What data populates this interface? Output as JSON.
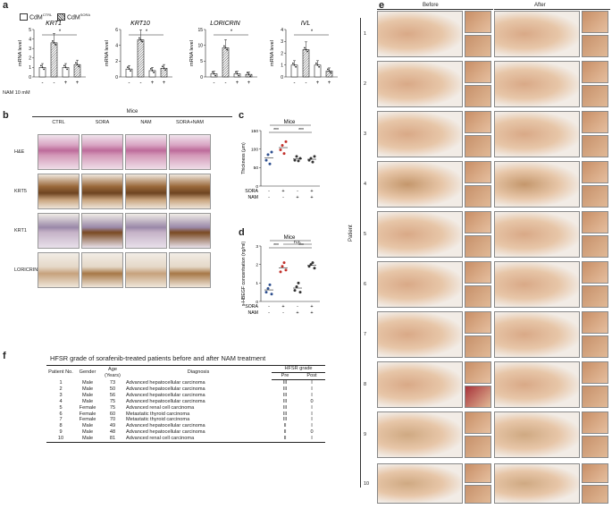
{
  "panel_letters": {
    "a": "a",
    "b": "b",
    "c": "c",
    "d": "d",
    "e": "e",
    "f": "f"
  },
  "panel_a": {
    "legend": {
      "ctrl": "CdM",
      "ctrl_sup": "CTRL",
      "sora": "CdM",
      "sora_sup": "SORA"
    },
    "nam_label": "NAM 10 mM",
    "signs": [
      "-",
      "-",
      "+",
      "+"
    ],
    "ylabel": "mRNA level",
    "sig": "*"
  },
  "chart_data": [
    {
      "type": "bar",
      "title": "KRT1",
      "ylabel": "mRNA level",
      "categories": [
        "CdM CTRL",
        "CdM SORA",
        "CdM CTRL + NAM",
        "CdM SORA + NAM"
      ],
      "values": [
        1.0,
        3.6,
        1.0,
        1.3
      ],
      "ylim": [
        0,
        5
      ],
      "yticks": [
        "0",
        "1",
        "2",
        "3",
        "4",
        "5"
      ]
    },
    {
      "type": "bar",
      "title": "KRT10",
      "ylabel": "mRNA level",
      "categories": [
        "CdM CTRL",
        "CdM SORA",
        "CdM CTRL + NAM",
        "CdM SORA + NAM"
      ],
      "values": [
        1.0,
        4.7,
        0.8,
        1.1
      ],
      "ylim": [
        0,
        6
      ],
      "yticks": [
        "0",
        "2",
        "4",
        "6"
      ]
    },
    {
      "type": "bar",
      "title": "LORICRIN",
      "ylabel": "mRNA level",
      "categories": [
        "CdM CTRL",
        "CdM SORA",
        "CdM CTRL + NAM",
        "CdM SORA + NAM"
      ],
      "values": [
        1.0,
        9.2,
        1.0,
        0.8
      ],
      "ylim": [
        0,
        15
      ],
      "yticks": [
        "0",
        "5",
        "10",
        "15"
      ]
    },
    {
      "type": "bar",
      "title": "IVL",
      "ylabel": "mRNA level",
      "categories": [
        "CdM CTRL",
        "CdM SORA",
        "CdM CTRL + NAM",
        "CdM SORA + NAM"
      ],
      "values": [
        1.0,
        2.3,
        1.0,
        0.5
      ],
      "ylim": [
        0,
        4
      ],
      "yticks": [
        "0",
        "1",
        "2",
        "3",
        "4"
      ]
    },
    {
      "type": "scatter",
      "title": "Mice",
      "ylabel": "Thickness (μm)",
      "categories": [
        "CTRL",
        "SORA",
        "NAM",
        "SORA+NAM"
      ],
      "ylim": [
        0,
        150
      ],
      "yticks": [
        "0",
        "50",
        "100",
        "150"
      ],
      "series": [
        {
          "values": [
            [
              70,
              85,
              60,
              92
            ],
            [
              98,
              110,
              88,
              120
            ],
            [
              70,
              80,
              68,
              75
            ],
            [
              70,
              75,
              65,
              80
            ]
          ]
        }
      ]
    },
    {
      "type": "scatter",
      "title": "Mice",
      "ylabel": "s-HBEGF concentration (ng/ml)",
      "categories": [
        "CTRL",
        "SORA",
        "NAM",
        "SORA+NAM"
      ],
      "ylim": [
        0,
        3
      ],
      "yticks": [
        "0",
        "1",
        "2",
        "3"
      ],
      "series": [
        {
          "values": [
            [
              0.5,
              0.7,
              0.9,
              0.4
            ],
            [
              1.6,
              1.9,
              2.1,
              1.7
            ],
            [
              0.6,
              0.8,
              1.0,
              0.5
            ],
            [
              1.9,
              2.0,
              2.1,
              1.8
            ]
          ]
        }
      ]
    }
  ],
  "panel_b": {
    "group_label": "Mice",
    "columns": [
      "CTRL",
      "SORA",
      "NAM",
      "SORA+NAM"
    ],
    "rows": [
      "H&E",
      "KRT5",
      "KRT1",
      "LORICRIN"
    ]
  },
  "panel_c": {
    "title": "Mice",
    "ylabel": "Thickness (μm)",
    "row_sora": "SORA",
    "row_nam": "NAM",
    "sig": [
      "***",
      "***"
    ],
    "sora_signs": [
      "-",
      "+",
      "-",
      "+"
    ],
    "nam_signs": [
      "-",
      "-",
      "+",
      "+"
    ]
  },
  "panel_d": {
    "title": "Mice",
    "ylabel": "s-HBEGF concentration (ng/ml)",
    "row_sora": "SORA",
    "row_nam": "NAM",
    "sig": [
      "***",
      "***",
      "n.s."
    ],
    "sora_signs": [
      "-",
      "+",
      "-",
      "+"
    ],
    "nam_signs": [
      "-",
      "-",
      "+",
      "+"
    ]
  },
  "panel_e": {
    "before": "Before",
    "after": "After",
    "side_label": "Patient",
    "patients": [
      "1",
      "2",
      "3",
      "4",
      "5",
      "6",
      "7",
      "8",
      "9",
      "10"
    ]
  },
  "panel_f": {
    "title": "HFSR grade of sorafenib-treated patients before and after NAM treatment",
    "headers": {
      "no": "Patient No.",
      "gender": "Gender",
      "age": "Age (Years)",
      "diagnosis": "Diagnosis",
      "hfsr": "HFSR grade",
      "pre": "Pre",
      "post": "Post"
    },
    "rows": [
      [
        "1",
        "Male",
        "73",
        "Advanced hepatocellular carcinoma",
        "III",
        "I"
      ],
      [
        "2",
        "Male",
        "50",
        "Advanced hepatocellular carcinoma",
        "III",
        "I"
      ],
      [
        "3",
        "Male",
        "56",
        "Advanced hepatocellular carcinoma",
        "III",
        "I"
      ],
      [
        "4",
        "Male",
        "75",
        "Advanced hepatocellular carcinoma",
        "III",
        "0"
      ],
      [
        "5",
        "Female",
        "75",
        "Advanced renal cell carcinoma",
        "III",
        "I"
      ],
      [
        "6",
        "Female",
        "60",
        "Metastatic thyroid carcinoma",
        "III",
        "I"
      ],
      [
        "7",
        "Female",
        "70",
        "Metastatic thyroid carcinoma",
        "III",
        "I"
      ],
      [
        "8",
        "Male",
        "49",
        "Advanced hepatocellular carcinoma",
        "II",
        "I"
      ],
      [
        "9",
        "Male",
        "48",
        "Advanced hepatocellular carcinoma",
        "II",
        "0"
      ],
      [
        "10",
        "Male",
        "81",
        "Advanced renal cell carcinoma",
        "II",
        "I"
      ]
    ]
  },
  "colors": {
    "bar_fill": "#ffffff",
    "bar_hatch": "#555555",
    "he": "#c98aa6",
    "brown": "#8a5a2c",
    "skin": "#d9a987",
    "dot_blue": "#2e4f8f",
    "dot_red": "#c2302a",
    "dot_dark": "#333333"
  }
}
